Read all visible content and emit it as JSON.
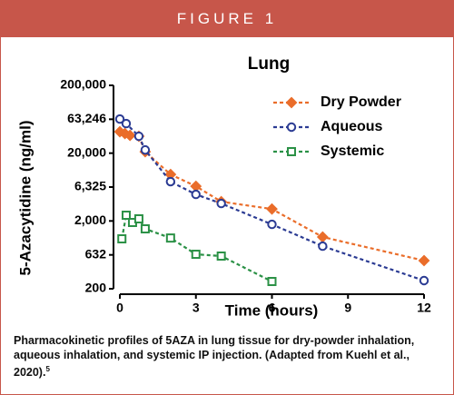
{
  "header": "FIGURE 1",
  "chart_data": {
    "type": "line",
    "title": "Lung",
    "x_label": "Time (hours)",
    "y_label": "5-Azacytidine (ng/ml)",
    "xlim": [
      0,
      12
    ],
    "xticks": [
      0,
      3,
      6,
      9,
      12
    ],
    "ylim": [
      200,
      200000
    ],
    "log_y": true,
    "yticks": [
      200,
      632,
      {
        "value": 2000,
        "label": "2,000"
      },
      {
        "value": 6325,
        "label": "6,325"
      },
      {
        "value": 20000,
        "label": "20,000"
      },
      {
        "value": 63246,
        "label": "63,246"
      },
      {
        "value": 200000,
        "label": "200,000"
      }
    ],
    "legend": "upper right",
    "series": [
      {
        "name": "Dry Powder",
        "color": "#ea6d2a",
        "marker": "diamond",
        "x": [
          0,
          0.2,
          0.4,
          0.75,
          1,
          2,
          3,
          4,
          6,
          8,
          12
        ],
        "values": [
          41400,
          38900,
          36600,
          35500,
          21000,
          9700,
          6500,
          3850,
          3000,
          1160,
          520
        ]
      },
      {
        "name": "Aqueous",
        "color": "#2b3b93",
        "marker": "circle",
        "x": [
          0,
          0.25,
          0.75,
          1,
          2,
          3,
          4,
          6,
          8,
          12
        ],
        "values": [
          63700,
          54600,
          35500,
          22300,
          7600,
          4930,
          3620,
          1780,
          850,
          264
        ]
      },
      {
        "name": "Systemic",
        "color": "#2b9146",
        "marker": "square",
        "x": [
          0.08,
          0.25,
          0.5,
          0.75,
          1,
          2,
          3,
          4,
          6
        ],
        "values": [
          1090,
          2430,
          1900,
          2150,
          1530,
          1120,
          645,
          607,
          256
        ]
      }
    ]
  },
  "caption": "Pharmacokinetic profiles of 5AZA in lung tissue for dry-powder inhalation, aqueous inhalation, and systemic IP injection. (Adapted from Kuehl et al., 2020).",
  "caption_ref": "5"
}
